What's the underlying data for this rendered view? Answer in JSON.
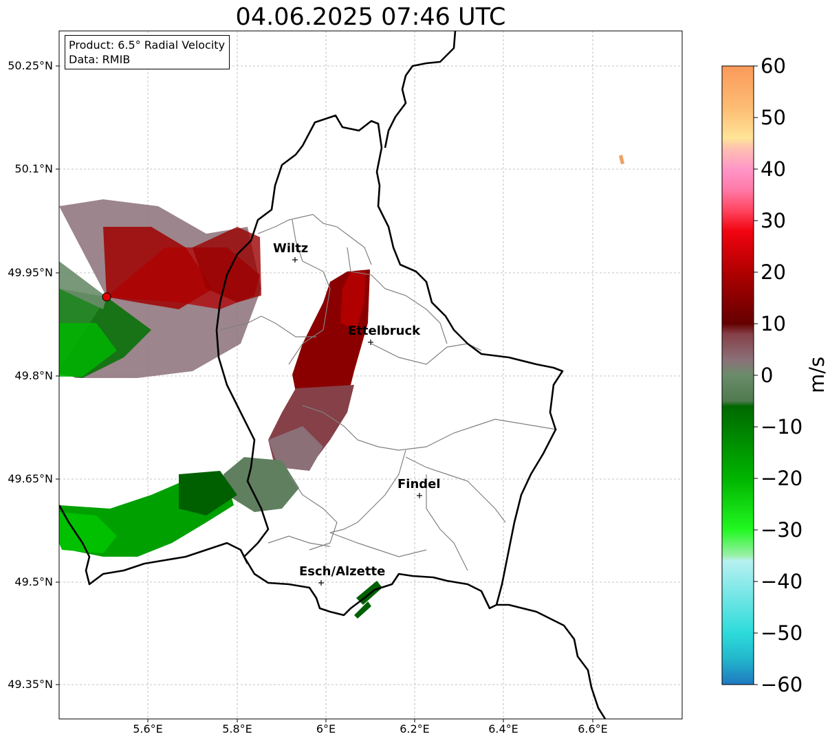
{
  "title": "04.06.2025 07:46 UTC",
  "info": {
    "product": "Product: 6.5° Radial Velocity",
    "data_source": "Data: RMIB"
  },
  "axes": {
    "lat_labels": [
      "50.25°N",
      "50.1°N",
      "49.95°N",
      "49.8°N",
      "49.65°N",
      "49.5°N",
      "49.35°N"
    ],
    "lon_labels": [
      "5.6°E",
      "5.8°E",
      "6°E",
      "6.2°E",
      "6.4°E",
      "6.6°E"
    ]
  },
  "cities": [
    {
      "name": "Wiltz"
    },
    {
      "name": "Ettelbruck"
    },
    {
      "name": "Findel"
    },
    {
      "name": "Esch/Alzette"
    }
  ],
  "colorbar": {
    "unit": "m/s",
    "tick_labels": [
      "60",
      "50",
      "40",
      "30",
      "20",
      "10",
      "0",
      "−10",
      "−20",
      "−30",
      "−40",
      "−50",
      "−60"
    ],
    "range": [
      -60,
      60
    ],
    "stops": [
      {
        "value": 60,
        "color": "#fb9a5a"
      },
      {
        "value": 52,
        "color": "#fdbc73"
      },
      {
        "value": 46,
        "color": "#fee497"
      },
      {
        "value": 44,
        "color": "#ffc0b0"
      },
      {
        "value": 40,
        "color": "#ff96c8"
      },
      {
        "value": 36,
        "color": "#ff7aa8"
      },
      {
        "value": 32,
        "color": "#ff4560"
      },
      {
        "value": 28,
        "color": "#f20410"
      },
      {
        "value": 20,
        "color": "#b00000"
      },
      {
        "value": 10,
        "color": "#650000"
      },
      {
        "value": 8,
        "color": "#864048"
      },
      {
        "value": 3,
        "color": "#8b7078"
      },
      {
        "value": 0,
        "color": "#6a8c6a"
      },
      {
        "value": -5,
        "color": "#4f7a4f"
      },
      {
        "value": -6,
        "color": "#006800"
      },
      {
        "value": -20,
        "color": "#00b400"
      },
      {
        "value": -30,
        "color": "#22f822"
      },
      {
        "value": -35,
        "color": "#9af0a8"
      },
      {
        "value": -36,
        "color": "#b7f0f0"
      },
      {
        "value": -50,
        "color": "#2ddbdb"
      },
      {
        "value": -55,
        "color": "#22b7cc"
      },
      {
        "value": -60,
        "color": "#1f78c0"
      }
    ]
  },
  "colors": {
    "border": "#000000",
    "canton_lines": "#808080",
    "grid": "#b0b0b0",
    "radar_site": "#e00000"
  }
}
